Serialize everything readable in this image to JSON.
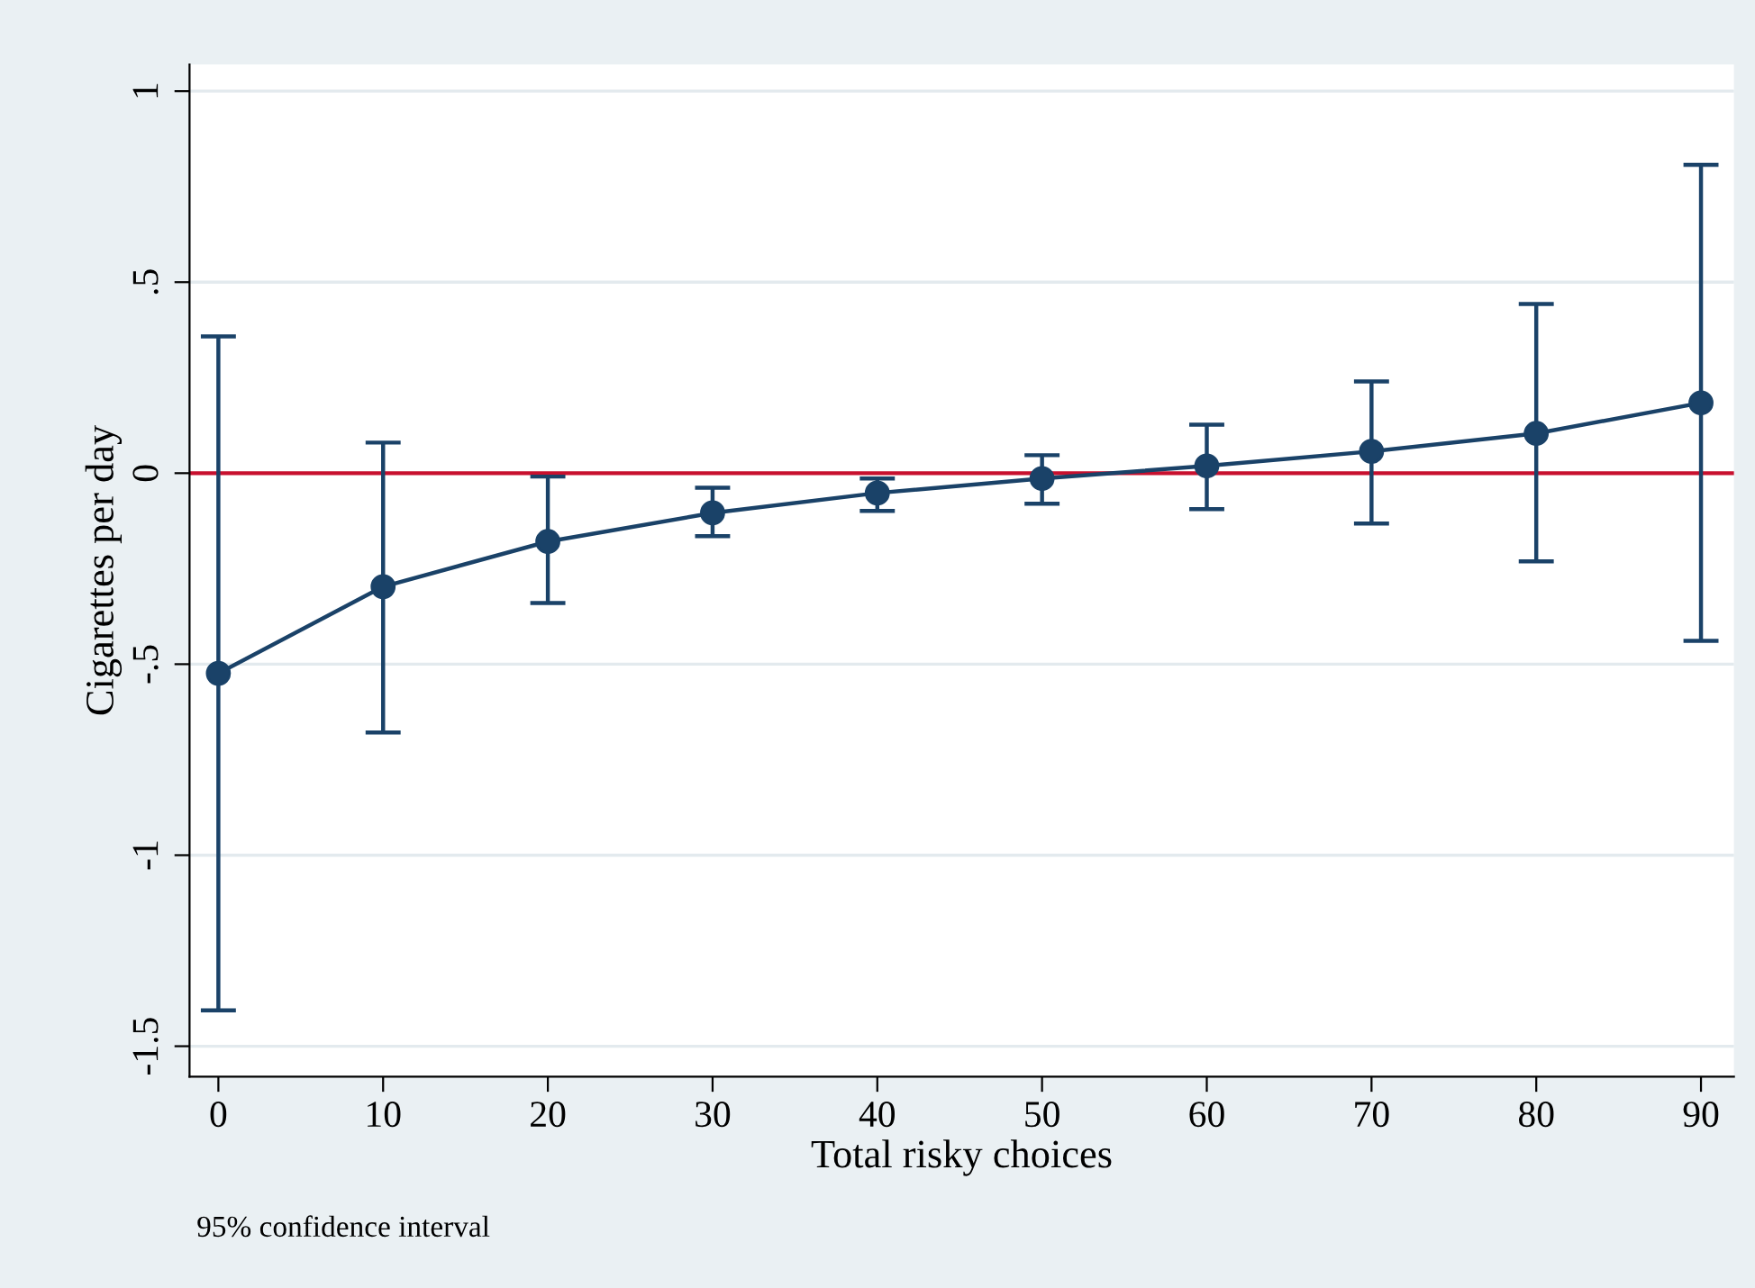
{
  "chart_data": {
    "type": "line",
    "xlabel": "Total risky choices",
    "ylabel": "Cigarettes per day",
    "annotations": [
      "95% confidence interval"
    ],
    "x": [
      0,
      10,
      20,
      30,
      40,
      50,
      60,
      70,
      80,
      90
    ],
    "series": [
      {
        "color": "#1a4268",
        "values": [
          -0.524,
          -0.297,
          -0.179,
          -0.104,
          -0.052,
          -0.014,
          0.019,
          0.057,
          0.104,
          0.184
        ],
        "errors": [
          [
            -1.406,
            0.358
          ],
          [
            -0.679,
            0.08
          ],
          [
            -0.34,
            -0.009
          ],
          [
            -0.165,
            -0.038
          ],
          [
            -0.099,
            -0.014
          ],
          [
            -0.08,
            0.047
          ],
          [
            -0.094,
            0.127
          ],
          [
            -0.132,
            0.24
          ],
          [
            -0.231,
            0.443
          ],
          [
            -0.439,
            0.807
          ]
        ]
      }
    ],
    "ref_lines": [
      {
        "axis": "y",
        "value": 0,
        "color": "#c8102e"
      }
    ],
    "xlim": [
      -1.75,
      92
    ],
    "ylim": [
      -1.58,
      1.07
    ],
    "xticks": [
      0,
      10,
      20,
      30,
      40,
      50,
      60,
      70,
      80,
      90
    ],
    "yticks": [
      {
        "value": -1.5,
        "label": "-1.5"
      },
      {
        "value": -1,
        "label": "-1"
      },
      {
        "value": -0.5,
        "label": "-.5"
      },
      0,
      {
        "value": 0.5,
        "label": ".5"
      },
      1
    ],
    "grid": "y",
    "marker": "circle",
    "line_style": "solid"
  }
}
